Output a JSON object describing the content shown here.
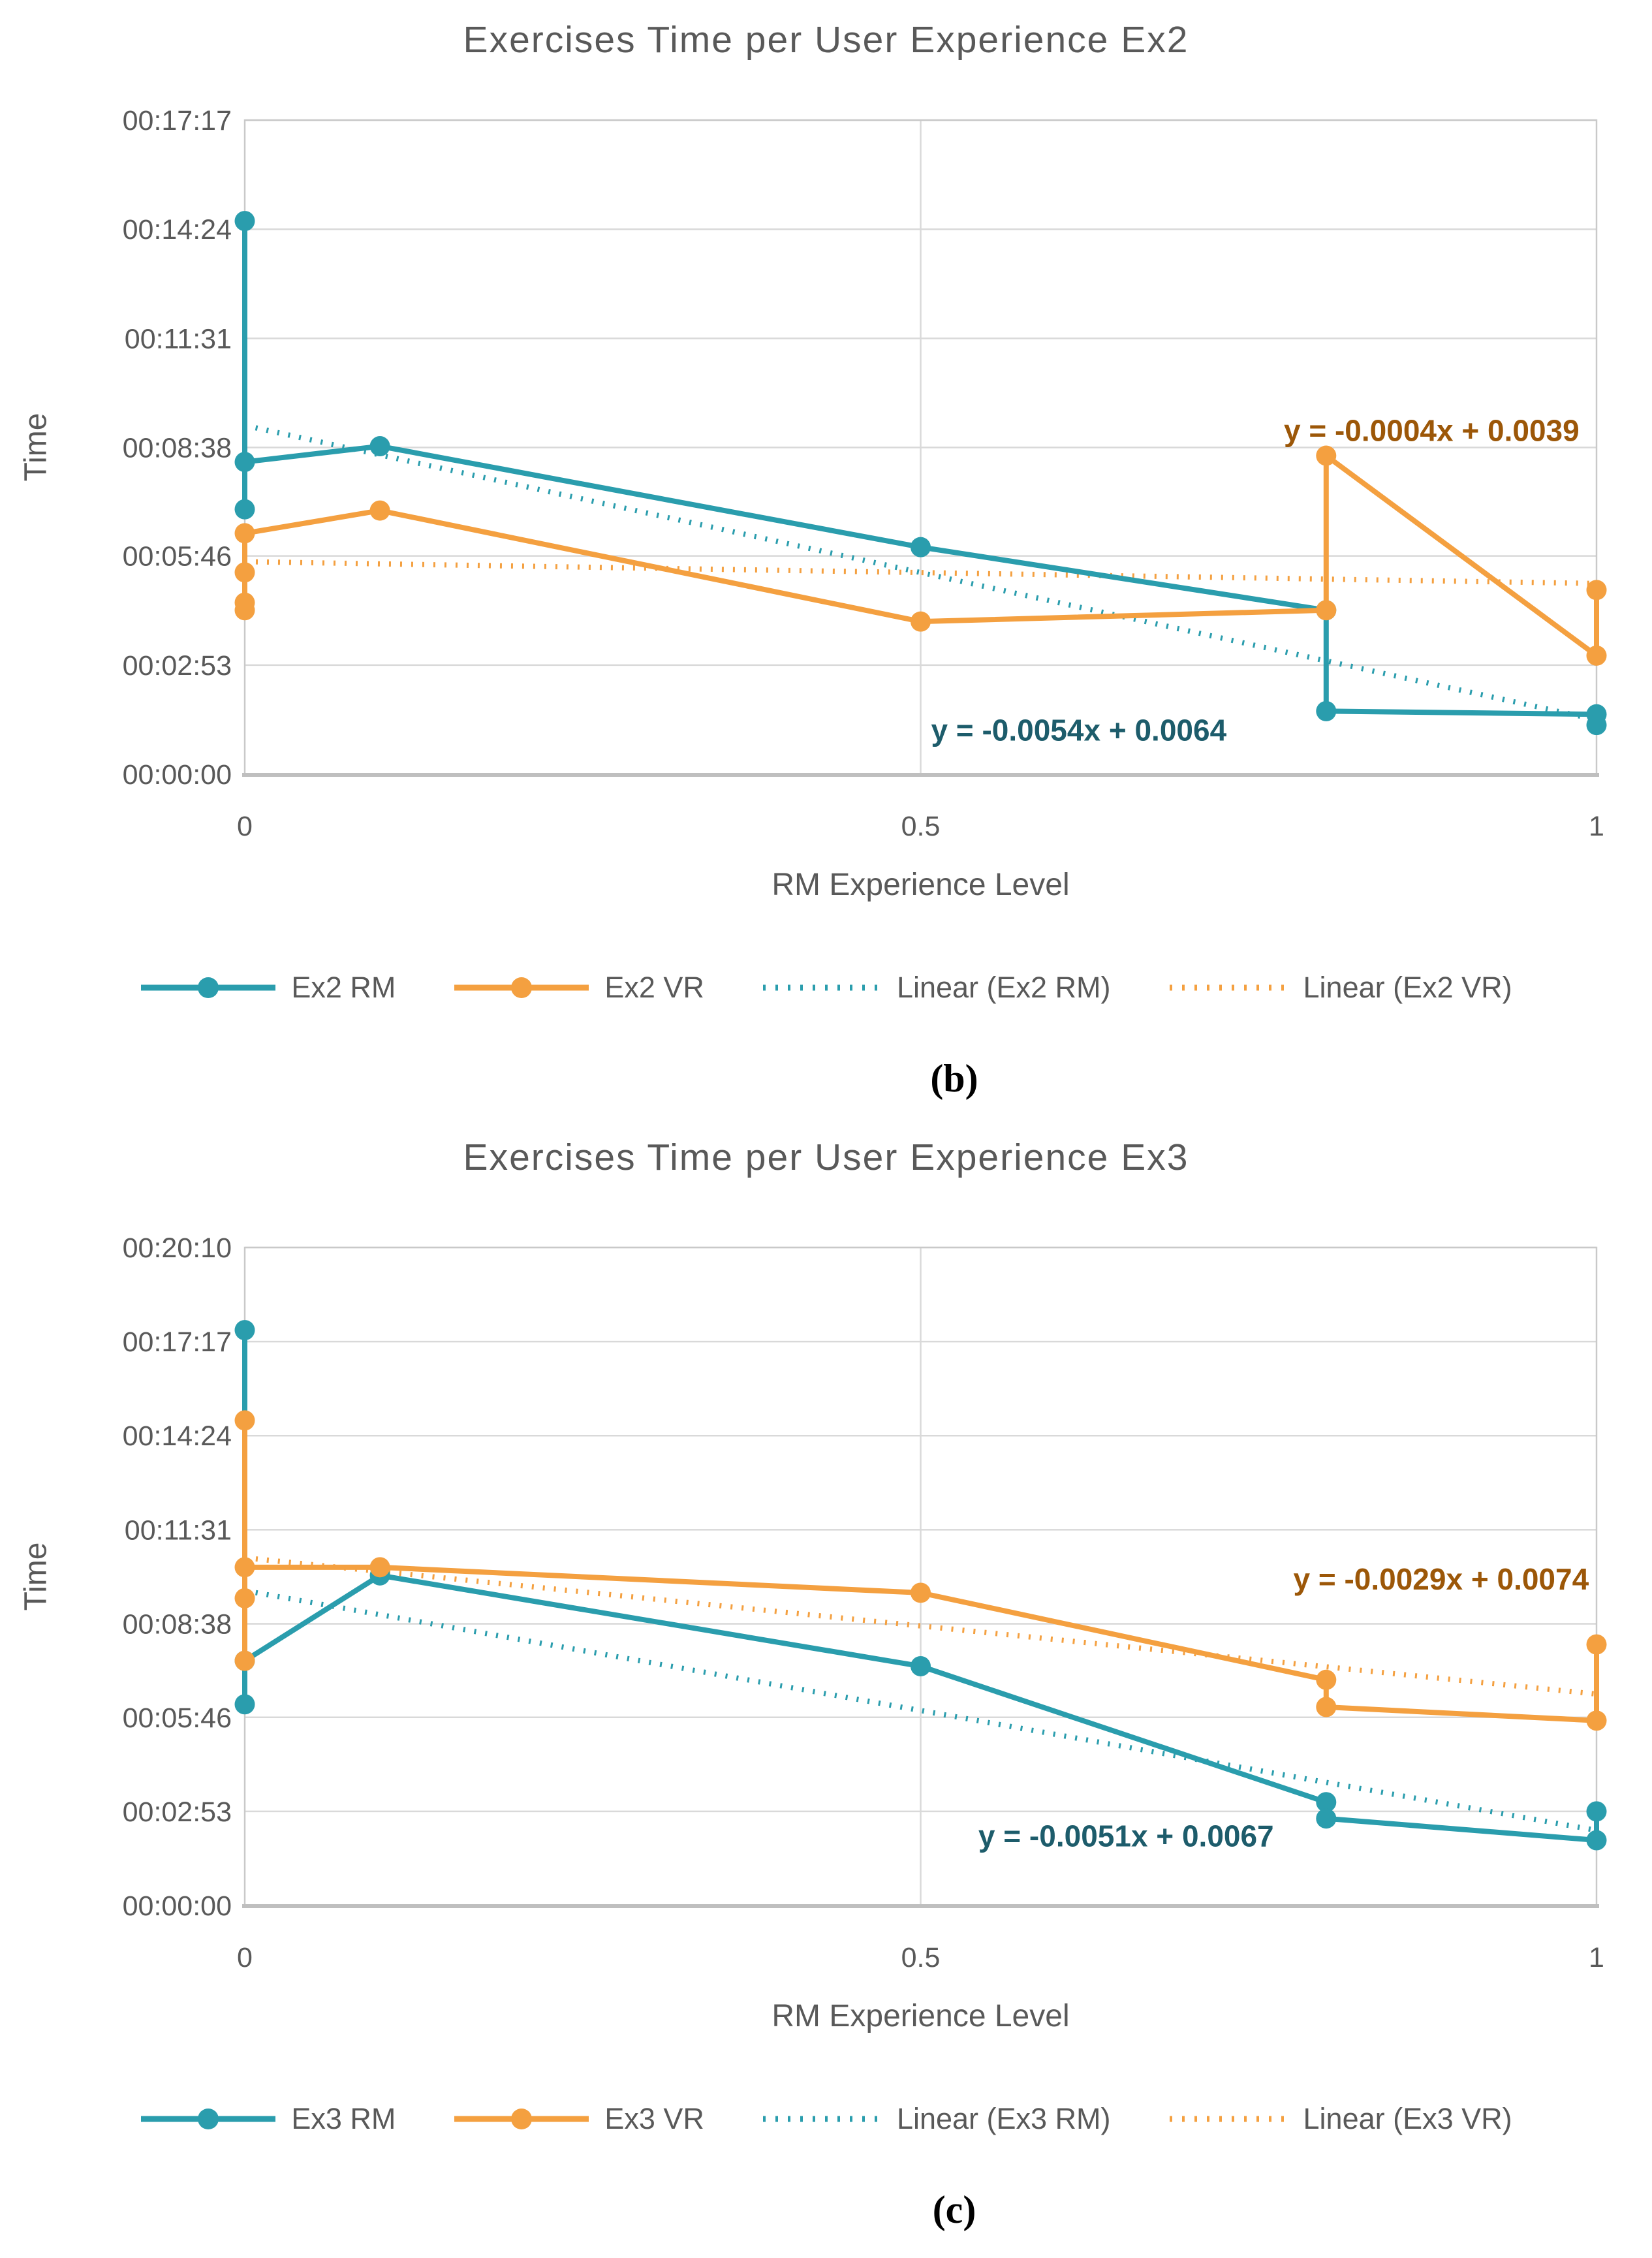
{
  "page": {
    "background": "#ffffff",
    "text_color": "#595959",
    "gridline_color": "#D9D9D9",
    "plot_border_color": "#C9C9C9",
    "axis_line_color": "#BFBFBF"
  },
  "chart_data": [
    {
      "type": "line",
      "title": "Exercises Time per User Experience Ex2",
      "caption": "(b)",
      "xlabel": "RM Experience Level",
      "ylabel": "Time",
      "grid": true,
      "legend_position": "bottom",
      "xlim": [
        0,
        1
      ],
      "x_ticks": [
        {
          "label": "0",
          "value": 0
        },
        {
          "label": "0.5",
          "value": 0.5
        },
        {
          "label": "1",
          "value": 1
        }
      ],
      "y_ticks": [
        "00:17:17",
        "00:14:24",
        "00:11:31",
        "00:08:38",
        "00:05:46",
        "00:02:53",
        "00:00:00"
      ],
      "y_max_time": "00:17:17",
      "series": [
        {
          "name": "Ex2 RM",
          "color": "#2A9DAD",
          "marker": "circle",
          "points": [
            {
              "x": 0,
              "time": "00:14:37"
            },
            {
              "x": 0,
              "time": "00:07:00"
            },
            {
              "x": 0,
              "time": "00:08:15"
            },
            {
              "x": 0.1,
              "time": "00:08:40"
            },
            {
              "x": 0.5,
              "time": "00:06:00"
            },
            {
              "x": 0.8,
              "time": "00:04:20"
            },
            {
              "x": 0.8,
              "time": "00:01:40"
            },
            {
              "x": 1,
              "time": "00:01:35"
            },
            {
              "x": 1,
              "time": "00:01:18"
            }
          ]
        },
        {
          "name": "Ex2 VR",
          "color": "#F4A040",
          "marker": "circle",
          "points": [
            {
              "x": 0,
              "time": "00:04:20"
            },
            {
              "x": 0,
              "time": "00:04:32"
            },
            {
              "x": 0,
              "time": "00:05:20"
            },
            {
              "x": 0,
              "time": "00:06:22"
            },
            {
              "x": 0.1,
              "time": "00:06:58"
            },
            {
              "x": 0.5,
              "time": "00:04:02"
            },
            {
              "x": 0.8,
              "time": "00:04:20"
            },
            {
              "x": 0.8,
              "time": "00:08:25"
            },
            {
              "x": 1,
              "time": "00:03:08"
            },
            {
              "x": 1,
              "time": "00:04:52"
            }
          ]
        }
      ],
      "trendlines": [
        {
          "name": "Linear (Ex2 RM)",
          "color": "#2A9DAD",
          "equation": "y = -0.0054x + 0.0064",
          "slope": -0.0054,
          "intercept": 0.0064,
          "label_color": "#1D5C6B",
          "label_x": 0.617,
          "label_time": "00:01:10"
        },
        {
          "name": "Linear (Ex2 VR)",
          "color": "#F4A040",
          "equation": "y = -0.0004x + 0.0039",
          "slope": -0.0004,
          "intercept": 0.0039,
          "label_color": "#9C5708",
          "label_x": 0.878,
          "label_time": "00:09:05"
        }
      ]
    },
    {
      "type": "line",
      "title": "Exercises Time per User Experience Ex3",
      "caption": "(c)",
      "xlabel": "RM Experience Level",
      "ylabel": "Time",
      "grid": true,
      "legend_position": "bottom",
      "xlim": [
        0,
        1
      ],
      "x_ticks": [
        {
          "label": "0",
          "value": 0
        },
        {
          "label": "0.5",
          "value": 0.5
        },
        {
          "label": "1",
          "value": 1
        }
      ],
      "y_ticks": [
        "00:20:10",
        "00:17:17",
        "00:14:24",
        "00:11:31",
        "00:08:38",
        "00:05:46",
        "00:02:53",
        "00:00:00"
      ],
      "y_max_time": "00:20:10",
      "series": [
        {
          "name": "Ex3 RM",
          "color": "#2A9DAD",
          "marker": "circle",
          "points": [
            {
              "x": 0,
              "time": "00:17:38"
            },
            {
              "x": 0,
              "time": "00:06:10"
            },
            {
              "x": 0,
              "time": "00:07:30"
            },
            {
              "x": 0.1,
              "time": "00:10:07"
            },
            {
              "x": 0.5,
              "time": "00:07:20"
            },
            {
              "x": 0.8,
              "time": "00:03:10"
            },
            {
              "x": 0.8,
              "time": "00:02:40"
            },
            {
              "x": 1,
              "time": "00:02:00"
            },
            {
              "x": 1,
              "time": "00:02:53"
            }
          ]
        },
        {
          "name": "Ex3 VR",
          "color": "#F4A040",
          "marker": "circle",
          "points": [
            {
              "x": 0,
              "time": "00:14:52"
            },
            {
              "x": 0,
              "time": "00:07:30"
            },
            {
              "x": 0,
              "time": "00:09:25"
            },
            {
              "x": 0,
              "time": "00:10:22"
            },
            {
              "x": 0.1,
              "time": "00:10:22"
            },
            {
              "x": 0.5,
              "time": "00:09:35"
            },
            {
              "x": 0.8,
              "time": "00:06:55"
            },
            {
              "x": 0.8,
              "time": "00:06:05"
            },
            {
              "x": 1,
              "time": "00:05:40"
            },
            {
              "x": 1,
              "time": "00:08:00"
            }
          ]
        }
      ],
      "trendlines": [
        {
          "name": "Linear (Ex3 RM)",
          "color": "#2A9DAD",
          "equation": "y = -0.0051x + 0.0067",
          "slope": -0.0051,
          "intercept": 0.0067,
          "label_color": "#1D5C6B",
          "label_x": 0.652,
          "label_time": "00:02:08"
        },
        {
          "name": "Linear (Ex3 VR)",
          "color": "#F4A040",
          "equation": "y = -0.0029x + 0.0074",
          "slope": -0.0029,
          "intercept": 0.0074,
          "label_color": "#9C5708",
          "label_x": 0.885,
          "label_time": "00:10:00"
        }
      ]
    }
  ]
}
